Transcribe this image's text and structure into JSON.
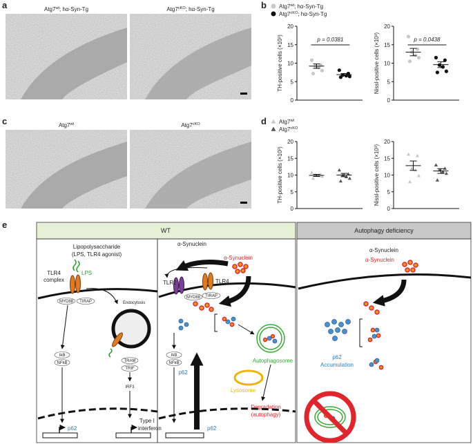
{
  "panel_labels": [
    "a",
    "b",
    "c",
    "d",
    "e"
  ],
  "panel_a": {
    "labels": [
      {
        "base": "Atg7",
        "sup": "wt",
        "suffix": "; hα-Syn-Tg"
      },
      {
        "base": "Atg7",
        "sup": "cKO",
        "suffix": "; hα-Syn-Tg"
      }
    ]
  },
  "panel_b": {
    "legend": [
      {
        "base": "Atg7",
        "sup": "wt",
        "suffix": "; hα-Syn-Tg",
        "color": "#c8c8c8",
        "marker": "circle"
      },
      {
        "base": "Atg7",
        "sup": "cKO",
        "suffix": "; hα-Syn-Tg",
        "color": "#111111",
        "marker": "circle"
      }
    ]
  },
  "panel_c": {
    "labels": [
      {
        "base": "Atg7",
        "sup": "wt"
      },
      {
        "base": "Atg7",
        "sup": "cKO"
      }
    ]
  },
  "panel_d": {
    "legend": [
      {
        "base": "Atg7",
        "sup": "wt",
        "color": "#c8c8c8",
        "marker": "triangle"
      },
      {
        "base": "Atg7",
        "sup": "cKO",
        "color": "#555555",
        "marker": "triangle"
      }
    ]
  },
  "chart_data": [
    {
      "type": "scatter",
      "y_label": "TH-positive cells (×10³)",
      "ylim": [
        0,
        20
      ],
      "yticks": [
        0,
        5,
        10,
        15,
        20
      ],
      "annotation": "p = 0.0381",
      "series": [
        {
          "color": "#c8c8c8",
          "marker": "circle",
          "values": [
            10.8,
            9.5,
            9.2,
            8.9,
            8.0,
            7.2
          ],
          "mean": 9.2,
          "sem": 0.6
        },
        {
          "color": "#111111",
          "marker": "circle",
          "values": [
            8.1,
            7.2,
            6.8,
            6.6,
            6.4,
            6.2
          ],
          "mean": 6.9,
          "sem": 0.3
        }
      ]
    },
    {
      "type": "scatter",
      "y_label": "Nissl-positive cells (×10³)",
      "ylim": [
        0,
        20
      ],
      "yticks": [
        0,
        5,
        10,
        15,
        20
      ],
      "annotation": "p = 0.0438",
      "series": [
        {
          "color": "#c8c8c8",
          "marker": "circle",
          "values": [
            17.2,
            13.8,
            13.0,
            12.2,
            11.5,
            10.5
          ],
          "mean": 13.0,
          "sem": 1.0
        },
        {
          "color": "#111111",
          "marker": "circle",
          "values": [
            11.5,
            10.8,
            9.5,
            9.0,
            7.8,
            7.5
          ],
          "mean": 9.6,
          "sem": 0.8
        }
      ]
    },
    {
      "type": "scatter",
      "y_label": "TH-positive cells (×10³)",
      "ylim": [
        0,
        20
      ],
      "yticks": [
        0,
        5,
        10,
        15,
        20
      ],
      "series": [
        {
          "color": "#c8c8c8",
          "marker": "triangle",
          "values": [
            10.8,
            10.2,
            10.0,
            9.8,
            9.6,
            9.0
          ],
          "mean": 9.9,
          "sem": 0.3
        },
        {
          "color": "#555555",
          "marker": "triangle",
          "values": [
            11.5,
            10.3,
            10.0,
            9.5,
            9.0,
            8.2
          ],
          "mean": 10.0,
          "sem": 0.5
        }
      ]
    },
    {
      "type": "scatter",
      "y_label": "Nissl-positive cells (×10³)",
      "ylim": [
        0,
        20
      ],
      "yticks": [
        0,
        5,
        10,
        15,
        20
      ],
      "series": [
        {
          "color": "#c8c8c8",
          "marker": "triangle",
          "values": [
            16.2,
            15.8,
            12.0,
            11.5,
            9.8,
            8.0
          ],
          "mean": 12.8,
          "sem": 1.4
        },
        {
          "color": "#555555",
          "marker": "triangle",
          "values": [
            13.0,
            12.0,
            11.5,
            11.0,
            10.5,
            8.5
          ],
          "mean": 11.2,
          "sem": 0.7
        }
      ]
    }
  ],
  "panel_e": {
    "headers": [
      "WT",
      "Autophagy deficiency"
    ],
    "box1": {
      "title": [
        "Lipopolysaccharide",
        "(LPS, TLR4 agonist)"
      ],
      "receptor": [
        "TLR4",
        "complex"
      ],
      "ligand": "LPS",
      "adaptors": [
        "MYD88",
        "TIRAP"
      ],
      "endocytosis": "Endocytosis",
      "trif": [
        "TRAM",
        "TRIF"
      ],
      "irf3": "IRF3",
      "nfkb": [
        "IkB",
        "NFkB"
      ],
      "gene": "p62",
      "ifn": [
        "Type I",
        "interferon"
      ]
    },
    "box2": {
      "title": "α-Synuclein",
      "syn": "α-Synuclein",
      "tlr2": "TLR2",
      "tlr4": "TLR4",
      "adaptors": [
        "MYD88",
        "TIRAP"
      ],
      "nfkb": [
        "IkB",
        "NFkB"
      ],
      "p62": "p62",
      "autophagosome": "Autophagosome",
      "lysosome": "Lysosome",
      "degradation": [
        "Degradation",
        "(autophagy)"
      ],
      "gene": "p62"
    },
    "box3": {
      "title": "α-Synuclein",
      "syn": "α-Synuclein",
      "p62": [
        "p62",
        "Accumulation"
      ]
    }
  }
}
